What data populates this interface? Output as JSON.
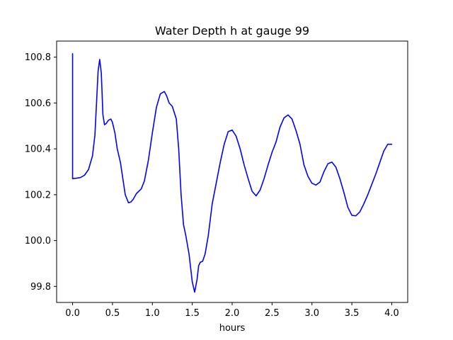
{
  "chart_data": {
    "type": "line",
    "title": "Water Depth h at gauge 99",
    "xlabel": "hours",
    "ylabel": "",
    "xlim": [
      -0.2,
      4.2
    ],
    "ylim": [
      99.73,
      100.87
    ],
    "xticks": [
      0.0,
      0.5,
      1.0,
      1.5,
      2.0,
      2.5,
      3.0,
      3.5,
      4.0
    ],
    "xtick_labels": [
      "0.0",
      "0.5",
      "1.0",
      "1.5",
      "2.0",
      "2.5",
      "3.0",
      "3.5",
      "4.0"
    ],
    "yticks": [
      99.8,
      100.0,
      100.2,
      100.4,
      100.6,
      100.8
    ],
    "ytick_labels": [
      "99.8",
      "100.0",
      "100.2",
      "100.4",
      "100.6",
      "100.8"
    ],
    "grid": false,
    "legend": "none",
    "series": [
      {
        "color": "#0000ff",
        "x": [
          0.0,
          0.0,
          0.0,
          0.05,
          0.1,
          0.15,
          0.2,
          0.25,
          0.28,
          0.3,
          0.32,
          0.34,
          0.36,
          0.38,
          0.4,
          0.42,
          0.45,
          0.48,
          0.5,
          0.53,
          0.56,
          0.6,
          0.63,
          0.66,
          0.7,
          0.73,
          0.76,
          0.8,
          0.83,
          0.86,
          0.9,
          0.95,
          1.0,
          1.05,
          1.1,
          1.15,
          1.18,
          1.21,
          1.25,
          1.3,
          1.33,
          1.36,
          1.39,
          1.42,
          1.46,
          1.5,
          1.53,
          1.56,
          1.58,
          1.6,
          1.63,
          1.66,
          1.7,
          1.75,
          1.8,
          1.85,
          1.9,
          1.95,
          2.0,
          2.05,
          2.1,
          2.15,
          2.2,
          2.25,
          2.3,
          2.35,
          2.4,
          2.45,
          2.5,
          2.55,
          2.6,
          2.65,
          2.7,
          2.75,
          2.8,
          2.85,
          2.9,
          2.95,
          3.0,
          3.05,
          3.1,
          3.15,
          3.2,
          3.25,
          3.3,
          3.35,
          3.4,
          3.45,
          3.5,
          3.55,
          3.6,
          3.65,
          3.7,
          3.75,
          3.8,
          3.85,
          3.9,
          3.95,
          4.0
        ],
        "y": [
          100.27,
          100.815,
          100.27,
          100.272,
          100.275,
          100.285,
          100.31,
          100.37,
          100.46,
          100.6,
          100.74,
          100.79,
          100.73,
          100.55,
          100.505,
          100.51,
          100.525,
          100.53,
          100.515,
          100.47,
          100.4,
          100.34,
          100.27,
          100.2,
          100.165,
          100.168,
          100.18,
          100.205,
          100.215,
          100.225,
          100.26,
          100.35,
          100.47,
          100.58,
          100.64,
          100.65,
          100.63,
          100.6,
          100.585,
          100.53,
          100.4,
          100.2,
          100.07,
          100.02,
          99.94,
          99.82,
          99.775,
          99.83,
          99.89,
          99.905,
          99.91,
          99.94,
          100.02,
          100.16,
          100.25,
          100.34,
          100.42,
          100.475,
          100.482,
          100.455,
          100.4,
          100.33,
          100.27,
          100.215,
          100.195,
          100.22,
          100.27,
          100.33,
          100.385,
          100.43,
          100.495,
          100.535,
          100.548,
          100.53,
          100.48,
          100.42,
          100.33,
          100.28,
          100.25,
          100.242,
          100.255,
          100.3,
          100.335,
          100.342,
          100.32,
          100.27,
          100.21,
          100.145,
          100.11,
          100.108,
          100.125,
          100.16,
          100.2,
          100.245,
          100.29,
          100.34,
          100.39,
          100.42,
          100.42
        ]
      }
    ]
  }
}
